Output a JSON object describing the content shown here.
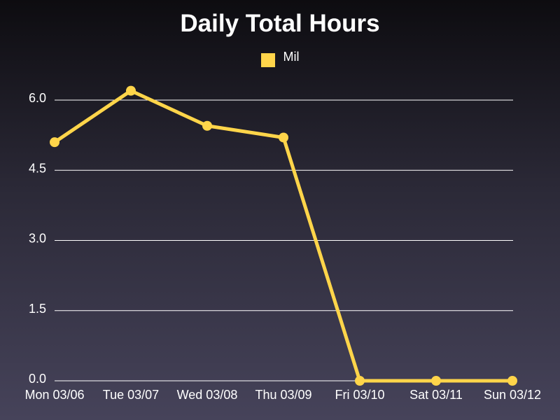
{
  "chart_data": {
    "type": "line",
    "title": "Daily Total Hours",
    "xlabel": "",
    "ylabel": "",
    "categories": [
      "Mon 03/06",
      "Tue 03/07",
      "Wed 03/08",
      "Thu 03/09",
      "Fri 03/10",
      "Sat 03/11",
      "Sun 03/12"
    ],
    "series": [
      {
        "name": "Mil",
        "color": "#ffd54a",
        "values": [
          5.1,
          6.2,
          5.45,
          5.2,
          0.0,
          0.0,
          0.0
        ]
      }
    ],
    "ylim": [
      0,
      6.0
    ],
    "yticks": [
      "0.0",
      "1.5",
      "3.0",
      "4.5",
      "6.0"
    ],
    "grid": true,
    "legend": "top-center"
  }
}
